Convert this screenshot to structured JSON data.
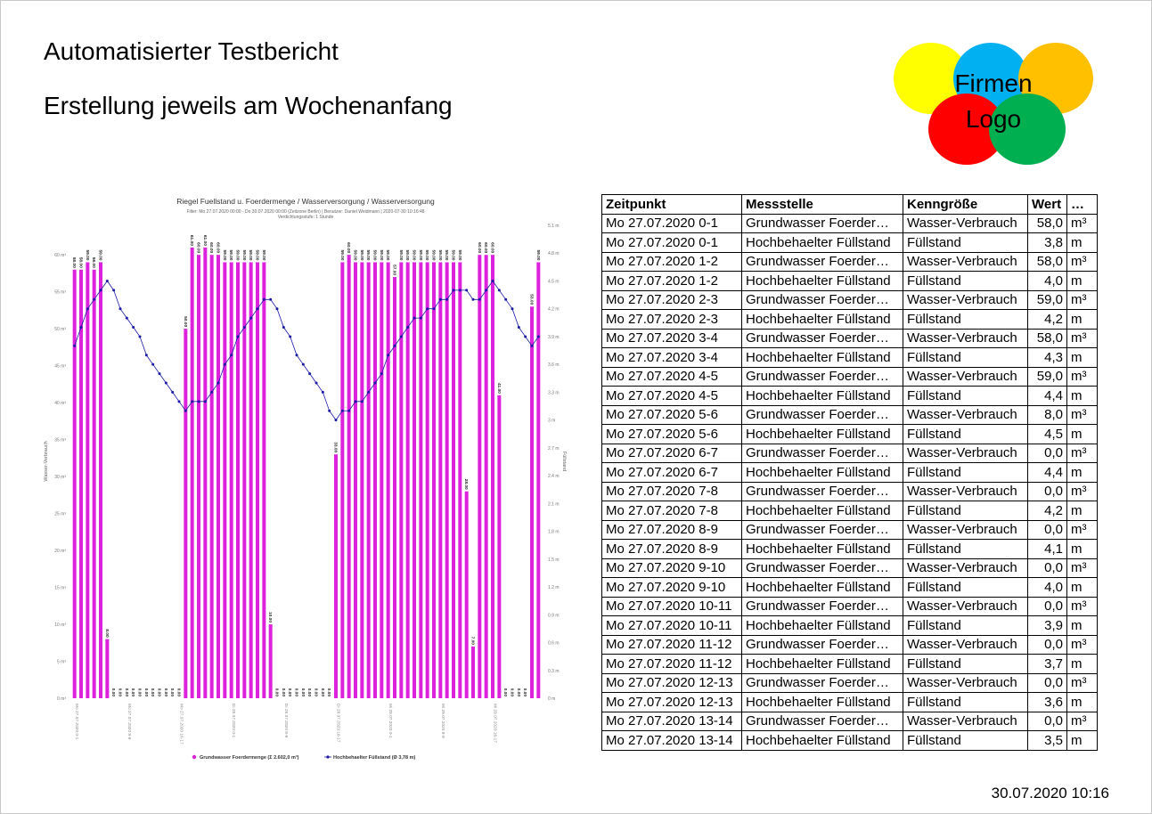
{
  "header": {
    "title": "Automatisierter Testbericht",
    "subtitle": "Erstellung jeweils am Wochenanfang"
  },
  "logo": {
    "line1": "Firmen",
    "line2": "Logo"
  },
  "chart_data": {
    "type": "bar",
    "title": "Riegel Fuellstand u. Foerdermenge / Wasserversorgung / Wasserversorgung",
    "subtitle": "Filter: Mo 27.07.2020 00:00 - Do 30.07.2020 00:00 (Zeitzone Berlin) | Benutzer: Daniel Weidmann | 2020-07-30 10:16:48",
    "subtitle2": "Verdichtungsstufe: 1 Stunde",
    "ylabel": "Wasser-Verbrauch",
    "y2label": "Füllstand",
    "categories": [
      "Mo 27.07.2020 0-1",
      null,
      null,
      null,
      null,
      null,
      null,
      null,
      "Mo 27.07.2020 8-9",
      null,
      null,
      null,
      null,
      null,
      null,
      null,
      "Mo 27.07.2020 16-17",
      null,
      null,
      null,
      null,
      null,
      null,
      null,
      "Di 28.07.2020 0-1",
      null,
      null,
      null,
      null,
      null,
      null,
      null,
      "Di 28.07.2020 8-9",
      null,
      null,
      null,
      null,
      null,
      null,
      null,
      "Di 28.07.2020 16-17",
      null,
      null,
      null,
      null,
      null,
      null,
      null,
      "Mi 29.07.2020 0-1",
      null,
      null,
      null,
      null,
      null,
      null,
      null,
      "Mi 29.07.2020 8-9",
      null,
      null,
      null,
      null,
      null,
      null,
      null,
      "Mi 29.07.2020 16-17",
      null,
      null,
      null,
      null,
      null,
      null,
      null
    ],
    "series": [
      {
        "name": "Grundwasser Foerdermenge (Σ 2.602,0 m³)",
        "color": "#dd22dd",
        "type": "bar",
        "values": [
          58,
          58,
          59,
          58,
          59,
          8,
          0,
          0,
          0,
          0,
          0,
          0,
          0,
          0,
          0,
          0,
          0,
          50,
          61,
          60,
          61,
          60,
          60,
          59,
          59,
          59,
          59,
          59,
          59,
          59,
          10,
          0,
          0,
          0,
          0,
          0,
          0,
          0,
          0,
          0,
          33,
          59,
          60,
          59,
          59,
          59,
          59,
          59,
          59,
          57,
          59,
          59,
          59,
          59,
          59,
          59,
          59,
          59,
          59,
          59,
          28,
          7,
          60,
          60,
          60,
          41,
          0,
          0,
          0,
          0,
          53,
          59
        ],
        "value_labels": [
          "58.00",
          "58.00",
          "59.00",
          "58.00",
          "59.00",
          "8.00",
          "0.00",
          "0.00",
          "0.00",
          "0.00",
          "0.00",
          "0.00",
          "0.00",
          "0.00",
          "0.00",
          "0.00",
          "0.00",
          "50.00",
          "61.00",
          "60.00",
          "61.00",
          "60.00",
          "60.00",
          "59.00",
          "59.00",
          "59.00",
          "59.00",
          "59.00",
          "59.00",
          "59.00",
          "10.00",
          "0.00",
          "0.00",
          "0.00",
          "0.00",
          "0.00",
          "0.00",
          "0.00",
          "0.00",
          "0.00",
          "33.00",
          "59.00",
          "60.00",
          "59.00",
          "59.00",
          "59.00",
          "59.00",
          "59.00",
          "59.00",
          "57.00",
          "59.00",
          "59.00",
          "59.00",
          "59.00",
          "59.00",
          "59.00",
          "59.00",
          "59.00",
          "59.00",
          "59.00",
          "28.00",
          "7.00",
          "60.00",
          "60.00",
          "60.00",
          "41.00",
          "0.00",
          "0.00",
          "0.00",
          "0.00",
          "53.00",
          "59.00"
        ]
      },
      {
        "name": "Hochbehaelter Füllstand (Ø 3,78 m)",
        "color": "#1a1aa6",
        "type": "line",
        "axis": "y2",
        "values": [
          3.8,
          4.0,
          4.2,
          4.3,
          4.4,
          4.5,
          4.4,
          4.2,
          4.1,
          4.0,
          3.9,
          3.7,
          3.6,
          3.5,
          3.4,
          3.3,
          3.2,
          3.1,
          3.2,
          3.2,
          3.2,
          3.3,
          3.4,
          3.6,
          3.7,
          3.9,
          4.0,
          4.1,
          4.2,
          4.3,
          4.3,
          4.2,
          4.0,
          3.9,
          3.7,
          3.6,
          3.5,
          3.4,
          3.3,
          3.1,
          3.0,
          3.1,
          3.1,
          3.2,
          3.2,
          3.3,
          3.4,
          3.5,
          3.7,
          3.8,
          3.9,
          4.0,
          4.1,
          4.1,
          4.2,
          4.2,
          4.3,
          4.3,
          4.4,
          4.4,
          4.4,
          4.3,
          4.3,
          4.4,
          4.5,
          4.4,
          4.3,
          4.2,
          4.0,
          3.9,
          3.8,
          3.9
        ]
      }
    ],
    "ylim": [
      0,
      64
    ],
    "yticks": [
      {
        "value": 0,
        "label": "0 m³"
      },
      {
        "value": 5,
        "label": "5 m³"
      },
      {
        "value": 10,
        "label": "10 m³"
      },
      {
        "value": 15,
        "label": "15 m³"
      },
      {
        "value": 20,
        "label": "20 m³"
      },
      {
        "value": 25,
        "label": "25 m³"
      },
      {
        "value": 30,
        "label": "30 m³"
      },
      {
        "value": 35,
        "label": "35 m³"
      },
      {
        "value": 40,
        "label": "40 m³"
      },
      {
        "value": 45,
        "label": "45 m³"
      },
      {
        "value": 50,
        "label": "50 m³"
      },
      {
        "value": 55,
        "label": "55 m³"
      },
      {
        "value": 60,
        "label": "60 m³"
      }
    ],
    "y2lim": [
      0,
      5.1
    ],
    "y2ticks": [
      {
        "value": 0,
        "label": "0 m"
      },
      {
        "value": 0.3,
        "label": "0.3 m"
      },
      {
        "value": 0.6,
        "label": "0.6 m"
      },
      {
        "value": 0.9,
        "label": "0.9 m"
      },
      {
        "value": 1.2,
        "label": "1.2 m"
      },
      {
        "value": 1.5,
        "label": "1.5 m"
      },
      {
        "value": 1.8,
        "label": "1.8 m"
      },
      {
        "value": 2.1,
        "label": "2.1 m"
      },
      {
        "value": 2.4,
        "label": "2.4 m"
      },
      {
        "value": 2.7,
        "label": "2.7 m"
      },
      {
        "value": 3,
        "label": "3 m"
      },
      {
        "value": 3.3,
        "label": "3.3 m"
      },
      {
        "value": 3.6,
        "label": "3.6 m"
      },
      {
        "value": 3.9,
        "label": "3.9 m"
      },
      {
        "value": 4.2,
        "label": "4.2 m"
      },
      {
        "value": 4.5,
        "label": "4.5 m"
      },
      {
        "value": 4.8,
        "label": "4.8 m"
      },
      {
        "value": 5.1,
        "label": "5.1 m"
      }
    ],
    "grid": false,
    "legend": "bottom"
  },
  "table": {
    "columns": [
      "Zeitpunkt",
      "Messstelle",
      "Kenngröße",
      "Wert",
      "…"
    ],
    "rows": [
      [
        "Mo 27.07.2020 0-1",
        "Grundwasser Foerder…",
        "Wasser-Verbrauch",
        "58,0",
        "m³"
      ],
      [
        "Mo 27.07.2020 0-1",
        "Hochbehaelter Füllstand",
        "Füllstand",
        "3,8",
        "m"
      ],
      [
        "Mo 27.07.2020 1-2",
        "Grundwasser Foerder…",
        "Wasser-Verbrauch",
        "58,0",
        "m³"
      ],
      [
        "Mo 27.07.2020 1-2",
        "Hochbehaelter Füllstand",
        "Füllstand",
        "4,0",
        "m"
      ],
      [
        "Mo 27.07.2020 2-3",
        "Grundwasser Foerder…",
        "Wasser-Verbrauch",
        "59,0",
        "m³"
      ],
      [
        "Mo 27.07.2020 2-3",
        "Hochbehaelter Füllstand",
        "Füllstand",
        "4,2",
        "m"
      ],
      [
        "Mo 27.07.2020 3-4",
        "Grundwasser Foerder…",
        "Wasser-Verbrauch",
        "58,0",
        "m³"
      ],
      [
        "Mo 27.07.2020 3-4",
        "Hochbehaelter Füllstand",
        "Füllstand",
        "4,3",
        "m"
      ],
      [
        "Mo 27.07.2020 4-5",
        "Grundwasser Foerder…",
        "Wasser-Verbrauch",
        "59,0",
        "m³"
      ],
      [
        "Mo 27.07.2020 4-5",
        "Hochbehaelter Füllstand",
        "Füllstand",
        "4,4",
        "m"
      ],
      [
        "Mo 27.07.2020 5-6",
        "Grundwasser Foerder…",
        "Wasser-Verbrauch",
        "8,0",
        "m³"
      ],
      [
        "Mo 27.07.2020 5-6",
        "Hochbehaelter Füllstand",
        "Füllstand",
        "4,5",
        "m"
      ],
      [
        "Mo 27.07.2020 6-7",
        "Grundwasser Foerder…",
        "Wasser-Verbrauch",
        "0,0",
        "m³"
      ],
      [
        "Mo 27.07.2020 6-7",
        "Hochbehaelter Füllstand",
        "Füllstand",
        "4,4",
        "m"
      ],
      [
        "Mo 27.07.2020 7-8",
        "Grundwasser Foerder…",
        "Wasser-Verbrauch",
        "0,0",
        "m³"
      ],
      [
        "Mo 27.07.2020 7-8",
        "Hochbehaelter Füllstand",
        "Füllstand",
        "4,2",
        "m"
      ],
      [
        "Mo 27.07.2020 8-9",
        "Grundwasser Foerder…",
        "Wasser-Verbrauch",
        "0,0",
        "m³"
      ],
      [
        "Mo 27.07.2020 8-9",
        "Hochbehaelter Füllstand",
        "Füllstand",
        "4,1",
        "m"
      ],
      [
        "Mo 27.07.2020 9-10",
        "Grundwasser Foerder…",
        "Wasser-Verbrauch",
        "0,0",
        "m³"
      ],
      [
        "Mo 27.07.2020 9-10",
        "Hochbehaelter Füllstand",
        "Füllstand",
        "4,0",
        "m"
      ],
      [
        "Mo 27.07.2020 10-11",
        "Grundwasser Foerder…",
        "Wasser-Verbrauch",
        "0,0",
        "m³"
      ],
      [
        "Mo 27.07.2020 10-11",
        "Hochbehaelter Füllstand",
        "Füllstand",
        "3,9",
        "m"
      ],
      [
        "Mo 27.07.2020 11-12",
        "Grundwasser Foerder…",
        "Wasser-Verbrauch",
        "0,0",
        "m³"
      ],
      [
        "Mo 27.07.2020 11-12",
        "Hochbehaelter Füllstand",
        "Füllstand",
        "3,7",
        "m"
      ],
      [
        "Mo 27.07.2020 12-13",
        "Grundwasser Foerder…",
        "Wasser-Verbrauch",
        "0,0",
        "m³"
      ],
      [
        "Mo 27.07.2020 12-13",
        "Hochbehaelter Füllstand",
        "Füllstand",
        "3,6",
        "m"
      ],
      [
        "Mo 27.07.2020 13-14",
        "Grundwasser Foerder…",
        "Wasser-Verbrauch",
        "0,0",
        "m³"
      ],
      [
        "Mo 27.07.2020 13-14",
        "Hochbehaelter Füllstand",
        "Füllstand",
        "3,5",
        "m"
      ]
    ]
  },
  "footer": {
    "date": "30.07.2020 10:16"
  }
}
